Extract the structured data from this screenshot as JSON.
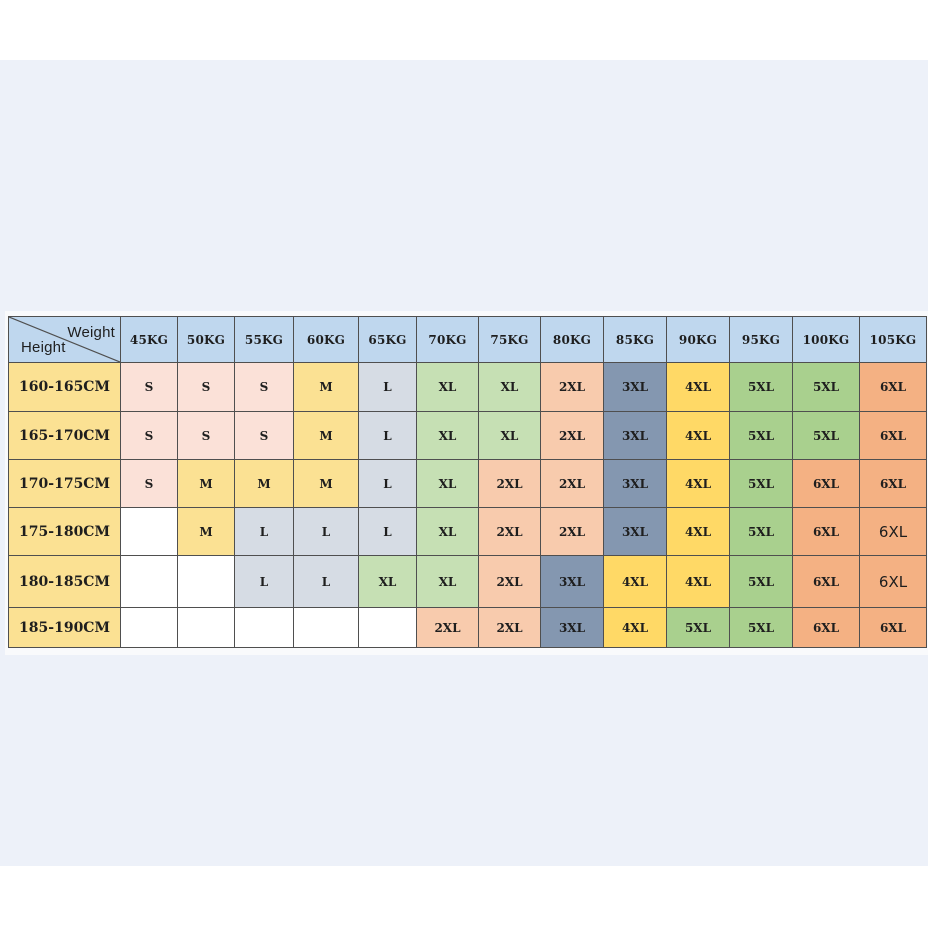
{
  "table": {
    "corner": {
      "top_right": "Weight",
      "bottom_left": "Height"
    },
    "weights": [
      "45KG",
      "50KG",
      "55KG",
      "60KG",
      "65KG",
      "70KG",
      "75KG",
      "80KG",
      "85KG",
      "90KG",
      "95KG",
      "100KG",
      "105KG"
    ],
    "rows": [
      {
        "height": "160-165CM",
        "sizes": [
          "S",
          "S",
          "S",
          "M",
          "L",
          "XL",
          "XL",
          "2XL",
          "3XL",
          "4XL",
          "5XL",
          "5XL",
          "6XL"
        ]
      },
      {
        "height": "165-170CM",
        "sizes": [
          "S",
          "S",
          "S",
          "M",
          "L",
          "XL",
          "XL",
          "2XL",
          "3XL",
          "4XL",
          "5XL",
          "5XL",
          "6XL"
        ]
      },
      {
        "height": "170-175CM",
        "sizes": [
          "S",
          "M",
          "M",
          "M",
          "L",
          "XL",
          "2XL",
          "2XL",
          "3XL",
          "4XL",
          "5XL",
          "6XL",
          "6XL"
        ]
      },
      {
        "height": "175-180CM",
        "sizes": [
          "",
          "M",
          "L",
          "L",
          "L",
          "XL",
          "2XL",
          "2XL",
          "3XL",
          "4XL",
          "5XL",
          "6XL",
          "6XL"
        ]
      },
      {
        "height": "180-185CM",
        "sizes": [
          "",
          "",
          "L",
          "L",
          "XL",
          "XL",
          "2XL",
          "3XL",
          "4XL",
          "4XL",
          "5XL",
          "6XL",
          "6XL"
        ]
      },
      {
        "height": "185-190CM",
        "sizes": [
          "",
          "",
          "",
          "",
          "",
          "2XL",
          "2XL",
          "3XL",
          "4XL",
          "5XL",
          "5XL",
          "6XL",
          "6XL"
        ]
      }
    ]
  },
  "colors": {
    "header": "#bfd7ee",
    "height_label": "#fbe193",
    "S": "#fbe1d8",
    "M": "#fbe193",
    "L": "#d6dce4",
    "XL": "#c6e0b4",
    "2XL": "#f8cbad",
    "3XL": "#8497b0",
    "4XL": "#ffd966",
    "5XL": "#a9d08e",
    "6XL": "#f4b183",
    "empty": "#ffffff"
  }
}
